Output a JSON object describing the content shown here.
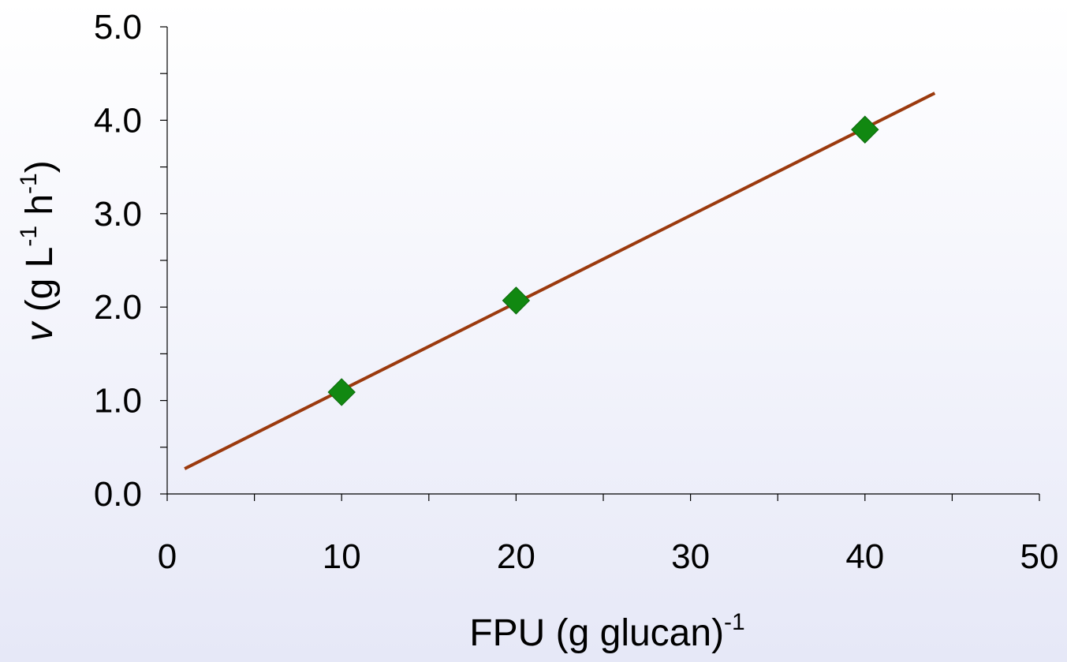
{
  "chart_data": {
    "type": "scatter",
    "xlabel": "FPU (g glucan)",
    "xlabel_sup": "-1",
    "ylabel": {
      "var": "v",
      "open": " (g L",
      "sup1": "-1",
      "mid": " h",
      "sup2": "-1",
      "close": ")"
    },
    "xlim": [
      0,
      50
    ],
    "ylim": [
      0,
      5
    ],
    "x_ticks": [
      0,
      10,
      20,
      30,
      40,
      50
    ],
    "x_tick_labels": [
      "0",
      "10",
      "20",
      "30",
      "40",
      "50"
    ],
    "y_ticks": [
      0,
      1,
      2,
      3,
      4,
      5
    ],
    "y_tick_labels": [
      "0.0",
      "1.0",
      "2.0",
      "3.0",
      "4.0",
      "5.0"
    ],
    "grid": false,
    "series": [
      {
        "marker": "diamond",
        "color": "#118811",
        "points": [
          {
            "x": 10,
            "y": 1.09
          },
          {
            "x": 20,
            "y": 2.07
          },
          {
            "x": 40,
            "y": 3.9
          }
        ]
      }
    ],
    "trendline": {
      "color": "#9b3a0e",
      "x": [
        1,
        44
      ],
      "y": [
        0.27,
        4.29
      ]
    }
  }
}
